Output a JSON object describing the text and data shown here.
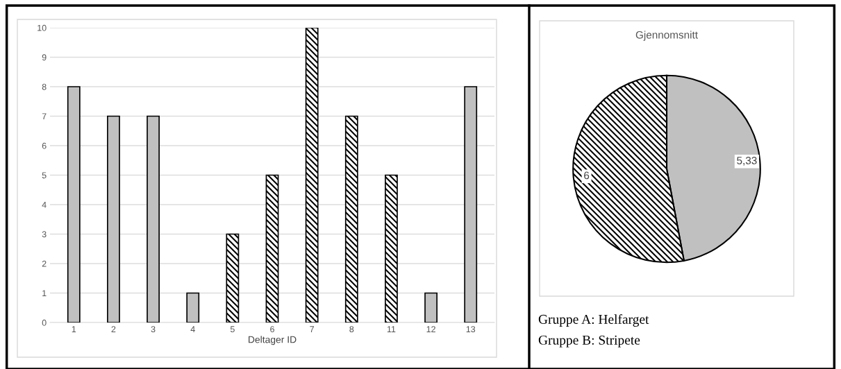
{
  "chart_data": [
    {
      "type": "bar",
      "xlabel": "Deltager ID",
      "categories": [
        "1",
        "2",
        "3",
        "4",
        "5",
        "6",
        "7",
        "8",
        "11",
        "12",
        "13"
      ],
      "values": [
        8,
        7,
        7,
        1,
        3,
        5,
        10,
        7,
        5,
        1,
        8
      ],
      "colors": [
        "#c0c0c0",
        "#c0c0c0",
        "#c0c0c0",
        "#c0c0c0",
        "#000000",
        "#000000",
        "#000000",
        "#000000",
        "#000000",
        "#c0c0c0",
        "#c0c0c0"
      ],
      "ylim": [
        0,
        10
      ],
      "yticks": [
        0,
        1,
        2,
        3,
        4,
        5,
        6,
        7,
        8,
        9,
        10
      ],
      "grid": "y"
    },
    {
      "type": "pie",
      "title": "Gjennomsnitt",
      "categories": [
        null,
        null
      ],
      "values": [
        5.33,
        6
      ],
      "colors": [
        "#c0c0c0",
        "#000000"
      ],
      "value_labels": [
        "5,33",
        "6"
      ],
      "annotations": [
        "Gruppe A: Helfarget",
        "Gruppe B: Stripete"
      ]
    }
  ]
}
